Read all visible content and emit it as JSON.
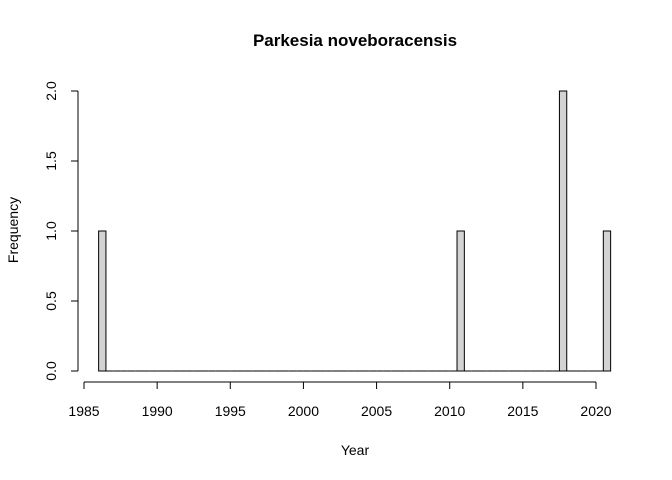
{
  "chart_data": {
    "type": "bar",
    "title": "Parkesia noveboracensis",
    "xlabel": "Year",
    "ylabel": "Frequency",
    "bin_width": 0.5,
    "bins_start": [
      1986,
      1986.5,
      1987,
      1987.5,
      1988,
      1988.5,
      1989,
      1989.5,
      1990,
      1990.5,
      1991,
      1991.5,
      1992,
      1992.5,
      1993,
      1993.5,
      1994,
      1994.5,
      1995,
      1995.5,
      1996,
      1996.5,
      1997,
      1997.5,
      1998,
      1998.5,
      1999,
      1999.5,
      2000,
      2000.5,
      2001,
      2001.5,
      2002,
      2002.5,
      2003,
      2003.5,
      2004,
      2004.5,
      2005,
      2005.5,
      2006,
      2006.5,
      2007,
      2007.5,
      2008,
      2008.5,
      2009,
      2009.5,
      2010,
      2010.5,
      2011,
      2011.5,
      2012,
      2012.5,
      2013,
      2013.5,
      2014,
      2014.5,
      2015,
      2015.5,
      2016,
      2016.5,
      2017,
      2017.5,
      2018,
      2018.5,
      2019,
      2019.5,
      2020,
      2020.5
    ],
    "values": [
      1,
      0,
      0,
      0,
      0,
      0,
      0,
      0,
      0,
      0,
      0,
      0,
      0,
      0,
      0,
      0,
      0,
      0,
      0,
      0,
      0,
      0,
      0,
      0,
      0,
      0,
      0,
      0,
      0,
      0,
      0,
      0,
      0,
      0,
      0,
      0,
      0,
      0,
      0,
      0,
      0,
      0,
      0,
      0,
      0,
      0,
      0,
      0,
      0,
      1,
      0,
      0,
      0,
      0,
      0,
      0,
      0,
      0,
      0,
      0,
      0,
      0,
      0,
      2,
      0,
      0,
      0,
      0,
      0,
      1
    ],
    "xlim": [
      1985,
      2021
    ],
    "ylim": [
      0,
      2
    ],
    "x_ticks": [
      1985,
      1990,
      1995,
      2000,
      2005,
      2010,
      2015,
      2020
    ],
    "x_tick_labels": [
      "1985",
      "1990",
      "1995",
      "2000",
      "2005",
      "2010",
      "2015",
      "2020"
    ],
    "y_ticks": [
      0,
      0.5,
      1,
      1.5,
      2
    ],
    "y_tick_labels": [
      "0.0",
      "0.5",
      "1.0",
      "1.5",
      "2.0"
    ],
    "grid": false,
    "bar_color": "#d3d3d3",
    "edge_color": "#000000"
  }
}
